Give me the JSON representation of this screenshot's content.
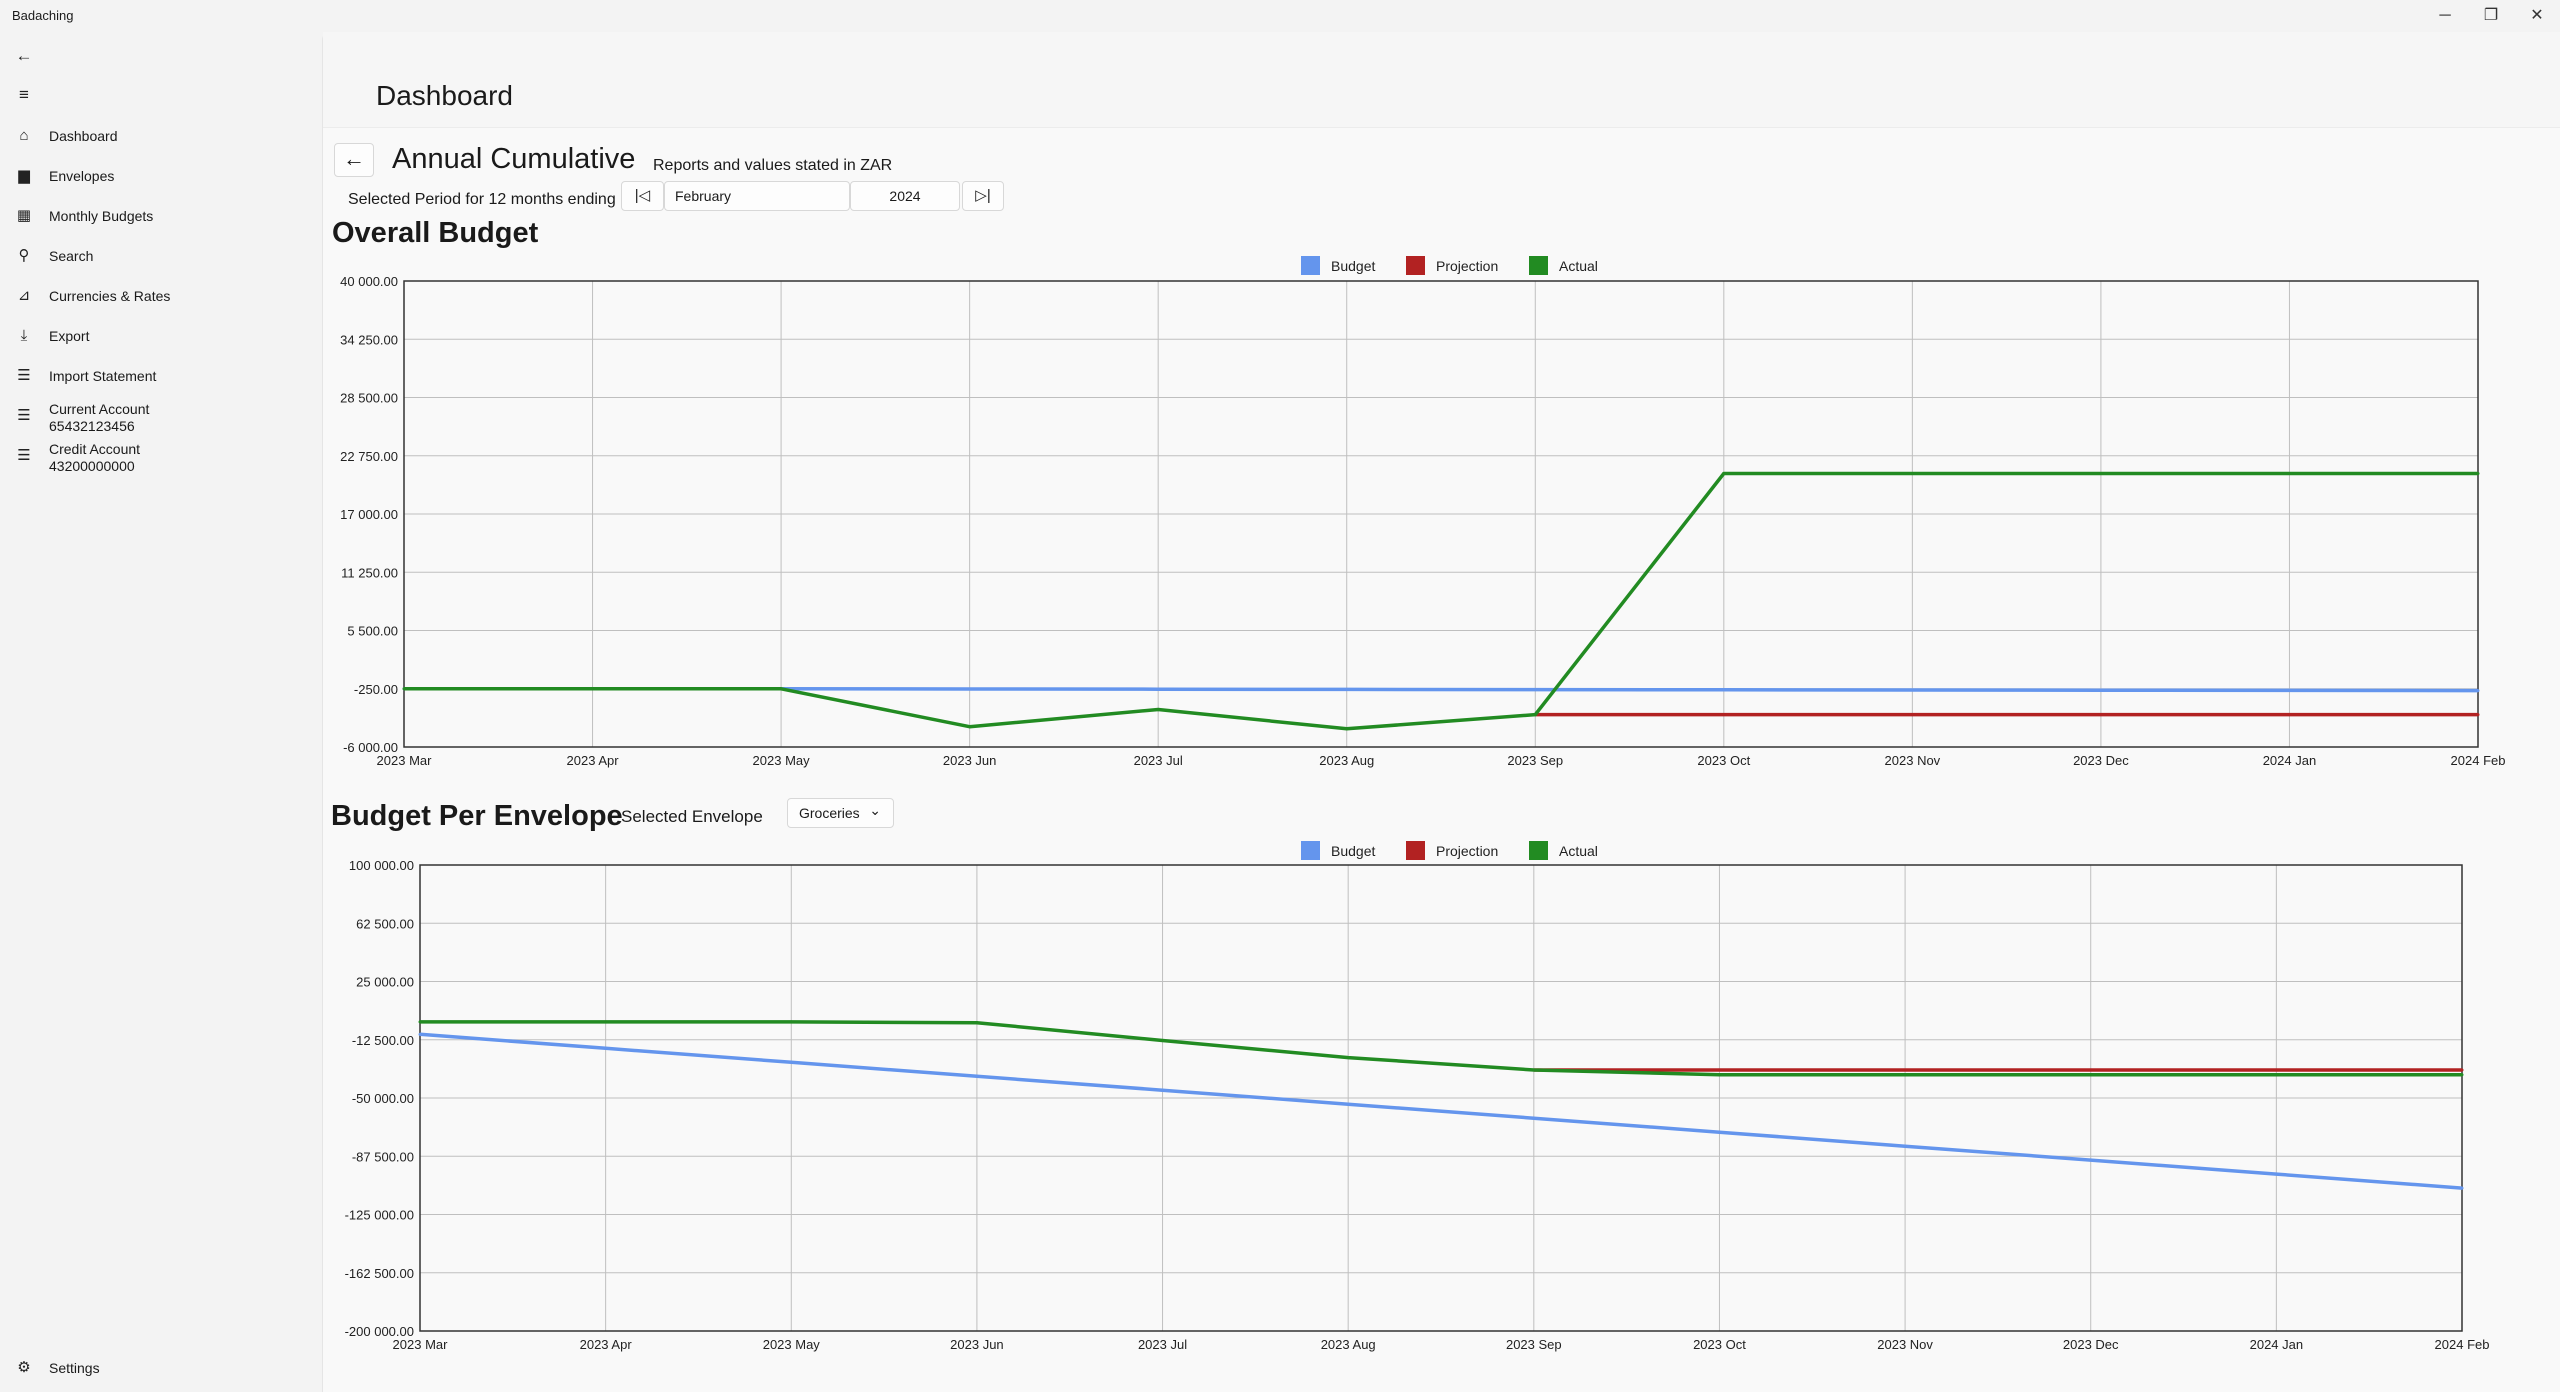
{
  "app": {
    "title": "Badaching"
  },
  "window_controls": {
    "minimize": "─",
    "restore": "❐",
    "close": "✕"
  },
  "sidebar": {
    "back_glyph": "←",
    "menu_glyph": "≡",
    "items": [
      {
        "label": "Dashboard",
        "icon": "home-icon",
        "glyph": "⌂"
      },
      {
        "label": "Envelopes",
        "icon": "folder-icon",
        "glyph": "▆"
      },
      {
        "label": "Monthly Budgets",
        "icon": "calculator-icon",
        "glyph": "▦"
      },
      {
        "label": "Search",
        "icon": "search-icon",
        "glyph": "⚲"
      },
      {
        "label": "Currencies & Rates",
        "icon": "chart-icon",
        "glyph": "⊿"
      },
      {
        "label": "Export",
        "icon": "download-icon",
        "glyph": "⤓"
      },
      {
        "label": "Import Statement",
        "icon": "checklist-icon",
        "glyph": "☰"
      },
      {
        "label": "Current Account",
        "sublabel": "65432123456",
        "icon": "list-icon",
        "glyph": "☰"
      },
      {
        "label": "Credit Account",
        "sublabel": "43200000000",
        "icon": "list-icon",
        "glyph": "☰"
      }
    ],
    "settings": {
      "label": "Settings",
      "icon": "gear-icon",
      "glyph": "⚙"
    }
  },
  "header": {
    "title": "Dashboard"
  },
  "report": {
    "back_glyph": "←",
    "title": "Annual Cumulative",
    "currency_note": "Reports and values stated in ZAR",
    "period_label": "Selected Period for 12 months ending",
    "month": "February",
    "year": "2024",
    "first_glyph": "|◁",
    "last_glyph": "▷|"
  },
  "overall": {
    "title": "Overall Budget"
  },
  "envelope": {
    "title": "Budget Per Envelope",
    "selector_label": "Selected Envelope",
    "selected": "Groceries",
    "chevron": "⌄"
  },
  "colors": {
    "budget": "#6495ED",
    "projection": "#B22222",
    "actual": "#228B22"
  },
  "chart_data": [
    {
      "type": "line",
      "title": "Overall Budget",
      "categories": [
        "2023 Mar",
        "2023 Apr",
        "2023 May",
        "2023 Jun",
        "2023 Jul",
        "2023 Aug",
        "2023 Sep",
        "2023 Oct",
        "2023 Nov",
        "2023 Dec",
        "2024 Jan",
        "2024 Feb"
      ],
      "ylim": [
        -6000,
        40000
      ],
      "yticks": [
        "40 000.00",
        "34 250.00",
        "28 500.00",
        "22 750.00",
        "17 000.00",
        "11 250.00",
        "5 500.00",
        "-250.00",
        "-6 000.00"
      ],
      "legend": [
        "Budget",
        "Projection",
        "Actual"
      ],
      "legend_position": "top-center",
      "grid": true,
      "series": [
        {
          "name": "Budget",
          "color": "#6495ED",
          "values": [
            -250,
            -250,
            -250,
            -270,
            -290,
            -310,
            -330,
            -350,
            -370,
            -390,
            -410,
            -430
          ]
        },
        {
          "name": "Projection",
          "color": "#B22222",
          "values": [
            null,
            null,
            null,
            null,
            null,
            null,
            -2800,
            -2800,
            -2800,
            -2800,
            -2800,
            -2800
          ]
        },
        {
          "name": "Actual",
          "color": "#228B22",
          "values": [
            -250,
            -250,
            -250,
            -4000,
            -2300,
            -4200,
            -2800,
            21000,
            21000,
            21000,
            21000,
            21000
          ]
        }
      ]
    },
    {
      "type": "line",
      "title": "Budget Per Envelope",
      "categories": [
        "2023 Mar",
        "2023 Apr",
        "2023 May",
        "2023 Jun",
        "2023 Jul",
        "2023 Aug",
        "2023 Sep",
        "2023 Oct",
        "2023 Nov",
        "2023 Dec",
        "2024 Jan",
        "2024 Feb"
      ],
      "ylim": [
        -200000,
        100000
      ],
      "yticks": [
        "100 000.00",
        "62 500.00",
        "25 000.00",
        "-12 500.00",
        "-50 000.00",
        "-87 500.00",
        "-125 000.00",
        "-162 500.00",
        "-200 000.00"
      ],
      "legend": [
        "Budget",
        "Projection",
        "Actual"
      ],
      "legend_position": "top-center",
      "grid": true,
      "series": [
        {
          "name": "Budget",
          "color": "#6495ED",
          "values": [
            -9000,
            -18000,
            -27000,
            -36000,
            -45000,
            -54000,
            -63000,
            -72000,
            -81000,
            -90000,
            -99000,
            -108000
          ]
        },
        {
          "name": "Projection",
          "color": "#B22222",
          "values": [
            null,
            null,
            null,
            null,
            null,
            null,
            -32000,
            -32000,
            -32000,
            -32000,
            -32000,
            -32000
          ]
        },
        {
          "name": "Actual",
          "color": "#228B22",
          "values": [
            -1000,
            -1000,
            -1000,
            -1500,
            -13000,
            -24000,
            -32000,
            -35000,
            -35000,
            -35000,
            -35000,
            -35000
          ]
        }
      ]
    }
  ]
}
